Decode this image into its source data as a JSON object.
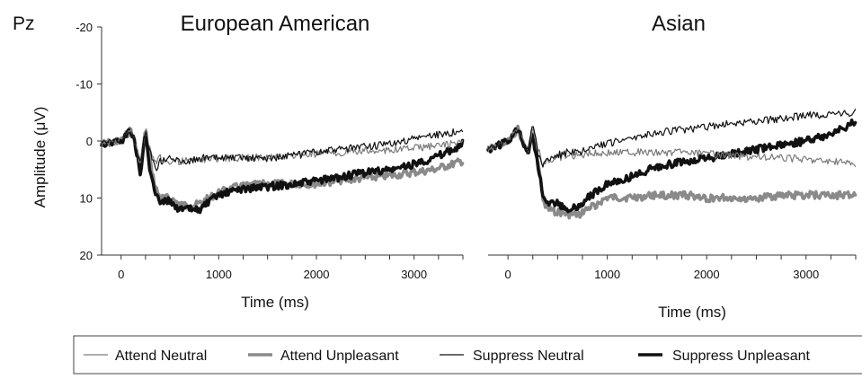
{
  "electrode_label": "Pz",
  "legend": [
    {
      "label": "Attend Neutral",
      "color": "#7a7a7a",
      "weight": "thin"
    },
    {
      "label": "Attend Unpleasant",
      "color": "#8a8a8a",
      "weight": "thick"
    },
    {
      "label": "Suppress Neutral",
      "color": "#111111",
      "weight": "thin"
    },
    {
      "label": "Suppress Unpleasant",
      "color": "#111111",
      "weight": "thick"
    }
  ],
  "chart_data": [
    {
      "type": "line",
      "title": "European American",
      "xlabel": "Time (ms)",
      "ylabel": "Amplitude (μV)",
      "xlim": [
        -200,
        3500
      ],
      "ylim": [
        -20,
        20
      ],
      "y_inverted": true,
      "x_ticks": [
        "0",
        "1000",
        "2000",
        "3000"
      ],
      "y_ticks": [
        "-20",
        "-10",
        "0",
        "10",
        "20"
      ],
      "legend_position": "bottom",
      "x": [
        -200,
        0,
        100,
        150,
        200,
        250,
        300,
        350,
        400,
        500,
        600,
        700,
        800,
        1000,
        1200,
        1500,
        1800,
        2000,
        2200,
        2500,
        2800,
        3000,
        3200,
        3400,
        3500
      ],
      "series": [
        {
          "name": "Attend Neutral",
          "values": [
            0.5,
            0,
            -2,
            1,
            4,
            -2,
            2,
            4,
            3,
            3.5,
            3.5,
            3.5,
            3.3,
            3,
            3,
            2.8,
            2.5,
            2.2,
            2,
            1.8,
            1.5,
            1.2,
            0.9,
            0.5,
            0.3
          ]
        },
        {
          "name": "Attend Unpleasant",
          "values": [
            0.5,
            0,
            -2,
            1,
            5,
            -2,
            4,
            8,
            10,
            10,
            11,
            11.5,
            11,
            9,
            8,
            7.5,
            7.5,
            7.5,
            7,
            6.5,
            6,
            5.5,
            5,
            4,
            3.5
          ]
        },
        {
          "name": "Suppress Neutral",
          "values": [
            0.5,
            0,
            -2,
            1,
            4,
            -2,
            2,
            5,
            3.5,
            3,
            3.5,
            3.5,
            3,
            3,
            3,
            3,
            2.5,
            2,
            1.5,
            1,
            0.5,
            -0.5,
            -1,
            -1.5,
            -1.5
          ]
        },
        {
          "name": "Suppress Unpleasant",
          "values": [
            0.5,
            0,
            -2,
            1,
            6,
            -1.5,
            6,
            9,
            10.5,
            10.5,
            12,
            12,
            12,
            9.5,
            8.5,
            8,
            7.5,
            7,
            6.5,
            5.5,
            5,
            4,
            3,
            1.5,
            0.5
          ]
        }
      ]
    },
    {
      "type": "line",
      "title": "Asian",
      "xlabel": "Time (ms)",
      "ylabel": "",
      "xlim": [
        -200,
        3500
      ],
      "ylim": [
        -20,
        20
      ],
      "y_inverted": true,
      "x_ticks": [
        "0",
        "1000",
        "2000",
        "3000"
      ],
      "y_ticks": [],
      "legend_position": "bottom",
      "x": [
        -200,
        0,
        100,
        150,
        200,
        250,
        300,
        350,
        400,
        500,
        600,
        700,
        800,
        1000,
        1200,
        1500,
        1800,
        2000,
        2200,
        2500,
        2800,
        3000,
        3200,
        3400,
        3500
      ],
      "series": [
        {
          "name": "Attend Neutral",
          "values": [
            1.5,
            0,
            -2,
            0,
            2,
            -2,
            1,
            4.5,
            3.5,
            3,
            2.5,
            2.5,
            2.2,
            2,
            2,
            2,
            2,
            2.3,
            2.5,
            2.8,
            3,
            3.2,
            3.5,
            3.8,
            4
          ]
        },
        {
          "name": "Attend Unpleasant",
          "values": [
            1.5,
            0,
            -2,
            0,
            2,
            -1,
            3,
            10,
            12,
            12.5,
            13,
            13,
            12,
            10,
            10,
            9.5,
            9.5,
            10,
            10,
            10,
            9.5,
            9.5,
            9.5,
            9.5,
            9.5
          ]
        },
        {
          "name": "Suppress Neutral",
          "values": [
            1.5,
            0,
            -2,
            0,
            2,
            -3,
            2,
            4.5,
            3,
            2.5,
            2,
            2,
            1.5,
            0.5,
            -0.5,
            -1.5,
            -2,
            -2.5,
            -3,
            -3.5,
            -4,
            -4.5,
            -4.5,
            -4.8,
            -5
          ]
        },
        {
          "name": "Suppress Unpleasant",
          "values": [
            1.5,
            0,
            -2,
            0,
            2,
            -1,
            4,
            9,
            11,
            11,
            12,
            11.5,
            10,
            7.5,
            6.5,
            4.5,
            3.5,
            3,
            2.5,
            1.5,
            0.5,
            0,
            -1,
            -2.5,
            -3.5
          ]
        }
      ]
    }
  ]
}
